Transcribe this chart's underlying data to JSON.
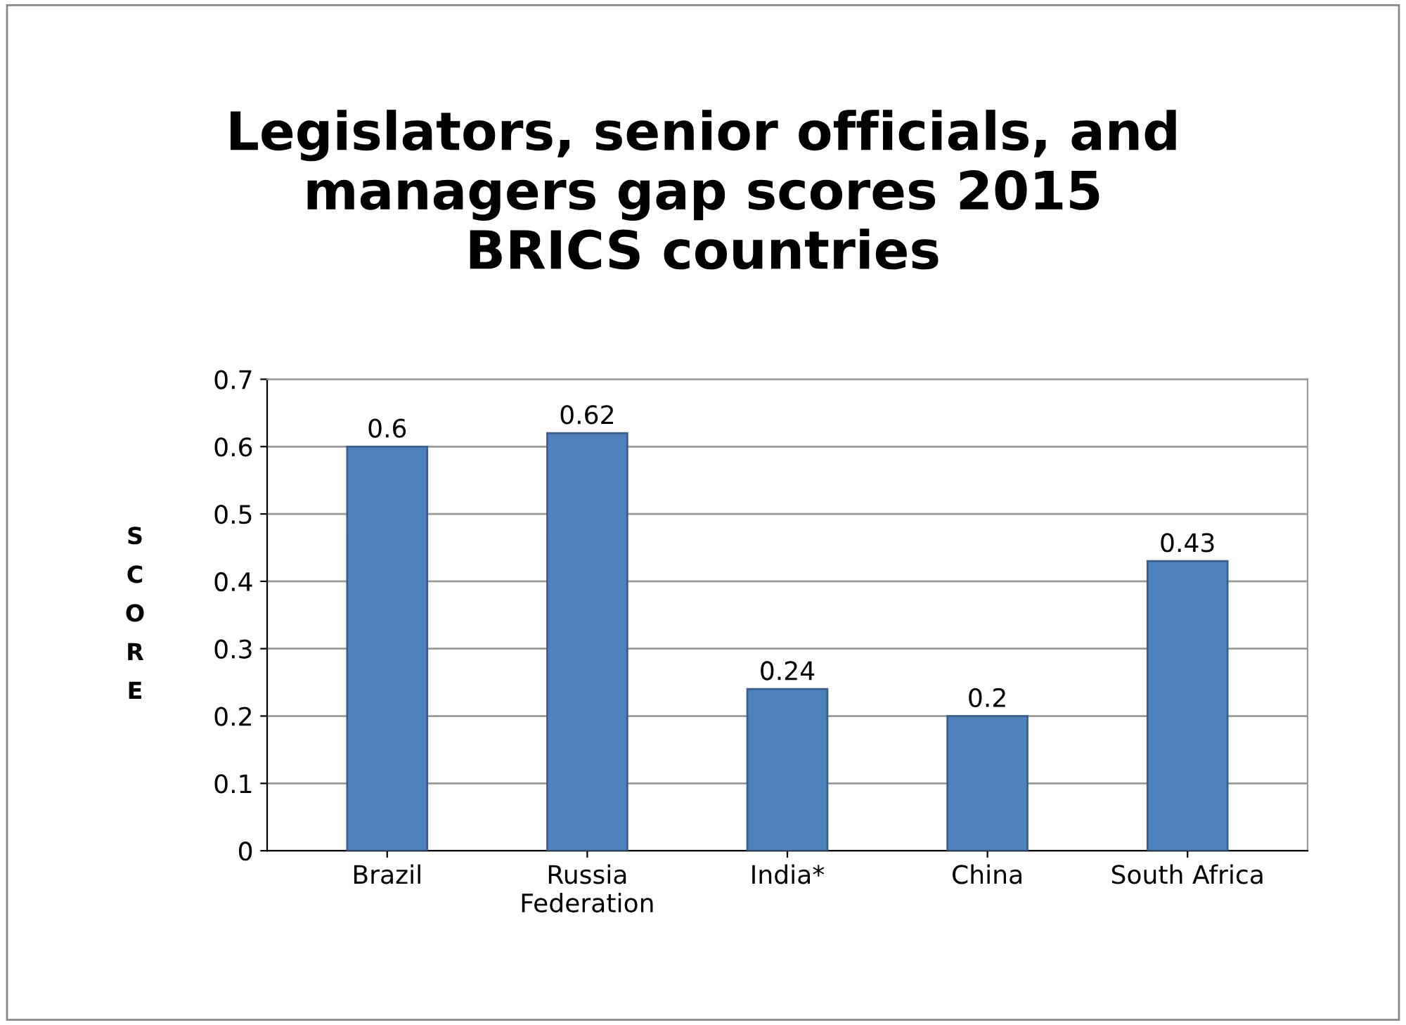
{
  "chart_data": {
    "type": "bar",
    "title": "Legislators, senior officials, and\nmanagers gap scores 2015\nBRICS countries",
    "ylabel": "SCORE",
    "categories": [
      "Brazil",
      "Russia\nFederation",
      "India*",
      "China",
      "South Africa"
    ],
    "values": [
      0.6,
      0.62,
      0.24,
      0.2,
      0.43
    ],
    "color": "#4f81bd",
    "ylim": [
      0,
      0.7
    ],
    "yticks": [
      0,
      0.1,
      0.2,
      0.3,
      0.4,
      0.5,
      0.6,
      0.7
    ],
    "grid": "y",
    "data_labels": true,
    "legend": false
  }
}
